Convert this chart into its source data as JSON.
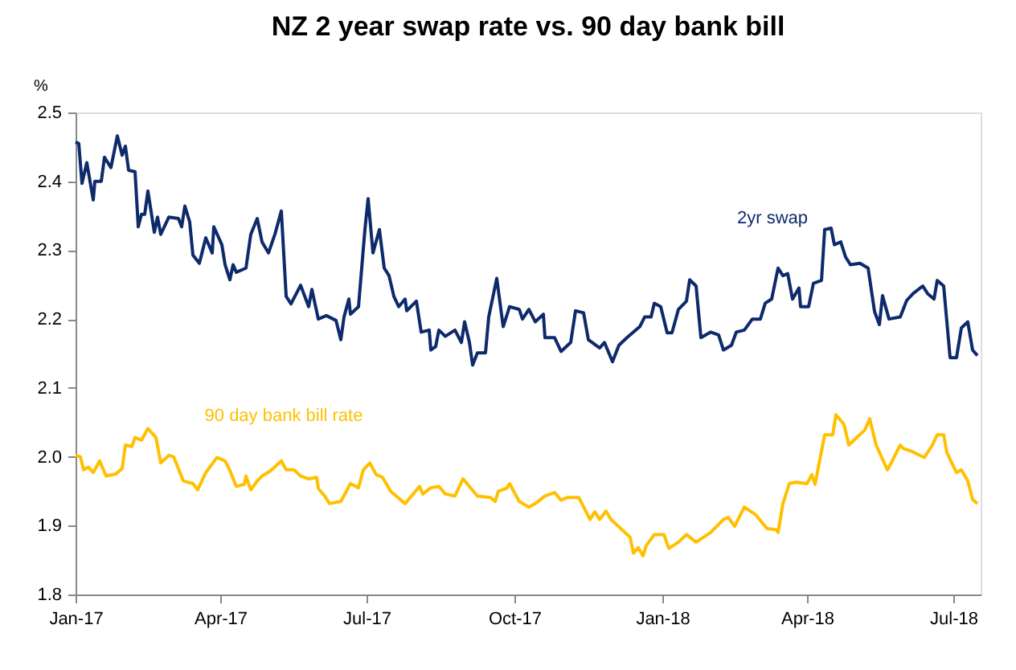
{
  "chart_data": {
    "type": "line",
    "title": "NZ 2 year swap rate vs. 90 day bank bill",
    "ylabel": "%",
    "xlim": [
      "2017-01-01",
      "2018-07-18"
    ],
    "xticks": [
      {
        "value": "2017-01-01",
        "label": "Jan-17"
      },
      {
        "value": "2017-04-01",
        "label": "Apr-17"
      },
      {
        "value": "2017-07-01",
        "label": "Jul-17"
      },
      {
        "value": "2017-10-01",
        "label": "Oct-17"
      },
      {
        "value": "2018-01-01",
        "label": "Jan-18"
      },
      {
        "value": "2018-04-01",
        "label": "Apr-18"
      },
      {
        "value": "2018-07-01",
        "label": "Jul-18"
      }
    ],
    "ylim": [
      1.8,
      2.5
    ],
    "yticks": [
      1.8,
      1.9,
      {
        "value": 2.0,
        "label": "2.0"
      },
      2.1,
      2.2,
      2.3,
      2.4,
      2.5
    ],
    "grid": false,
    "legend": false,
    "marker": "none",
    "line_style": "solid",
    "series": [
      {
        "name": "2yr swap",
        "color": "#0d2a6b",
        "x": [
          "2017-01-01",
          "2017-01-03",
          "2017-01-05",
          "2017-01-08",
          "2017-01-12",
          "2017-01-13",
          "2017-01-17",
          "2017-01-19",
          "2017-01-23",
          "2017-01-27",
          "2017-01-30",
          "2017-02-01",
          "2017-02-03",
          "2017-02-07",
          "2017-02-09",
          "2017-02-11",
          "2017-02-13",
          "2017-02-15",
          "2017-02-19",
          "2017-02-21",
          "2017-02-23",
          "2017-02-28",
          "2017-03-06",
          "2017-03-08",
          "2017-03-10",
          "2017-03-13",
          "2017-03-15",
          "2017-03-19",
          "2017-03-23",
          "2017-03-27",
          "2017-03-28",
          "2017-04-02",
          "2017-04-04",
          "2017-04-07",
          "2017-04-09",
          "2017-04-11",
          "2017-04-17",
          "2017-04-20",
          "2017-04-24",
          "2017-04-27",
          "2017-05-01",
          "2017-05-05",
          "2017-05-09",
          "2017-05-12",
          "2017-05-15",
          "2017-05-21",
          "2017-05-26",
          "2017-05-28",
          "2017-06-01",
          "2017-06-06",
          "2017-06-12",
          "2017-06-15",
          "2017-06-17",
          "2017-06-20",
          "2017-06-21",
          "2017-06-26",
          "2017-06-30",
          "2017-07-02",
          "2017-07-05",
          "2017-07-09",
          "2017-07-12",
          "2017-07-15",
          "2017-07-18",
          "2017-07-21",
          "2017-07-25",
          "2017-07-26",
          "2017-08-01",
          "2017-08-04",
          "2017-08-09",
          "2017-08-10",
          "2017-08-13",
          "2017-08-15",
          "2017-08-19",
          "2017-08-25",
          "2017-08-29",
          "2017-08-31",
          "2017-09-03",
          "2017-09-05",
          "2017-09-08",
          "2017-09-13",
          "2017-09-15",
          "2017-09-20",
          "2017-09-24",
          "2017-09-28",
          "2017-10-04",
          "2017-10-06",
          "2017-10-10",
          "2017-10-14",
          "2017-10-19",
          "2017-10-20",
          "2017-10-26",
          "2017-10-30",
          "2017-11-05",
          "2017-11-08",
          "2017-11-13",
          "2017-11-16",
          "2017-11-23",
          "2017-11-26",
          "2017-12-01",
          "2017-12-05",
          "2017-12-10",
          "2017-12-18",
          "2017-12-21",
          "2017-12-25",
          "2017-12-27",
          "2017-12-31",
          "2018-01-04",
          "2018-01-07",
          "2018-01-11",
          "2018-01-16",
          "2018-01-18",
          "2018-01-22",
          "2018-01-25",
          "2018-01-31",
          "2018-02-05",
          "2018-02-08",
          "2018-02-13",
          "2018-02-16",
          "2018-02-21",
          "2018-02-26",
          "2018-03-03",
          "2018-03-06",
          "2018-03-10",
          "2018-03-14",
          "2018-03-17",
          "2018-03-20",
          "2018-03-23",
          "2018-03-27",
          "2018-03-28",
          "2018-04-02",
          "2018-04-05",
          "2018-04-10",
          "2018-04-12",
          "2018-04-16",
          "2018-04-18",
          "2018-04-22",
          "2018-04-25",
          "2018-04-28",
          "2018-05-04",
          "2018-05-09",
          "2018-05-13",
          "2018-05-16",
          "2018-05-18",
          "2018-05-22",
          "2018-05-29",
          "2018-06-02",
          "2018-06-06",
          "2018-06-12",
          "2018-06-15",
          "2018-06-19",
          "2018-06-21",
          "2018-06-25",
          "2018-06-29",
          "2018-07-03",
          "2018-07-06",
          "2018-07-10",
          "2018-07-13",
          "2018-07-16"
        ],
        "values": [
          2.457,
          2.455,
          2.397,
          2.427,
          2.373,
          2.4,
          2.4,
          2.435,
          2.42,
          2.466,
          2.438,
          2.451,
          2.416,
          2.414,
          2.334,
          2.352,
          2.352,
          2.386,
          2.326,
          2.348,
          2.323,
          2.348,
          2.346,
          2.334,
          2.364,
          2.341,
          2.293,
          2.281,
          2.318,
          2.296,
          2.334,
          2.308,
          2.279,
          2.257,
          2.279,
          2.268,
          2.274,
          2.323,
          2.346,
          2.312,
          2.296,
          2.323,
          2.357,
          2.233,
          2.222,
          2.249,
          2.218,
          2.243,
          2.2,
          2.205,
          2.198,
          2.17,
          2.203,
          2.229,
          2.207,
          2.218,
          2.33,
          2.375,
          2.296,
          2.33,
          2.274,
          2.263,
          2.233,
          2.218,
          2.229,
          2.212,
          2.226,
          2.181,
          2.184,
          2.155,
          2.16,
          2.184,
          2.175,
          2.184,
          2.166,
          2.196,
          2.166,
          2.133,
          2.151,
          2.151,
          2.203,
          2.259,
          2.189,
          2.218,
          2.214,
          2.2,
          2.214,
          2.196,
          2.207,
          2.173,
          2.173,
          2.153,
          2.166,
          2.212,
          2.209,
          2.17,
          2.158,
          2.166,
          2.138,
          2.162,
          2.173,
          2.189,
          2.203,
          2.203,
          2.223,
          2.218,
          2.18,
          2.18,
          2.214,
          2.226,
          2.257,
          2.248,
          2.173,
          2.181,
          2.177,
          2.155,
          2.162,
          2.181,
          2.184,
          2.2,
          2.2,
          2.223,
          2.229,
          2.274,
          2.263,
          2.266,
          2.229,
          2.245,
          2.218,
          2.218,
          2.252,
          2.256,
          2.33,
          2.332,
          2.308,
          2.312,
          2.29,
          2.279,
          2.281,
          2.274,
          2.211,
          2.192,
          2.234,
          2.2,
          2.203,
          2.227,
          2.237,
          2.248,
          2.237,
          2.229,
          2.256,
          2.248,
          2.144,
          2.144,
          2.187,
          2.196,
          2.155,
          2.147
        ]
      },
      {
        "name": "90 day bank bill rate",
        "color": "#ffc000",
        "x": [
          "2017-01-01",
          "2017-01-04",
          "2017-01-06",
          "2017-01-09",
          "2017-01-12",
          "2017-01-16",
          "2017-01-20",
          "2017-01-26",
          "2017-01-30",
          "2017-02-01",
          "2017-02-05",
          "2017-02-07",
          "2017-02-11",
          "2017-02-15",
          "2017-02-20",
          "2017-02-23",
          "2017-02-28",
          "2017-03-03",
          "2017-03-09",
          "2017-03-15",
          "2017-03-18",
          "2017-03-23",
          "2017-03-30",
          "2017-04-04",
          "2017-04-07",
          "2017-04-11",
          "2017-04-16",
          "2017-04-17",
          "2017-04-20",
          "2017-04-24",
          "2017-04-27",
          "2017-05-02",
          "2017-05-09",
          "2017-05-12",
          "2017-05-17",
          "2017-05-21",
          "2017-05-26",
          "2017-05-31",
          "2017-06-01",
          "2017-06-05",
          "2017-06-08",
          "2017-06-15",
          "2017-06-21",
          "2017-06-26",
          "2017-06-29",
          "2017-07-03",
          "2017-07-07",
          "2017-07-11",
          "2017-07-16",
          "2017-07-25",
          "2017-07-30",
          "2017-08-03",
          "2017-08-05",
          "2017-08-10",
          "2017-08-15",
          "2017-08-19",
          "2017-08-25",
          "2017-08-30",
          "2017-09-04",
          "2017-09-08",
          "2017-09-16",
          "2017-09-19",
          "2017-09-21",
          "2017-09-26",
          "2017-09-28",
          "2017-10-04",
          "2017-10-10",
          "2017-10-14",
          "2017-10-20",
          "2017-10-26",
          "2017-10-30",
          "2017-11-03",
          "2017-11-10",
          "2017-11-17",
          "2017-11-20",
          "2017-11-23",
          "2017-11-27",
          "2017-11-30",
          "2017-12-07",
          "2017-12-12",
          "2017-12-14",
          "2017-12-17",
          "2017-12-20",
          "2017-12-22",
          "2017-12-27",
          "2018-01-02",
          "2018-01-05",
          "2018-01-11",
          "2018-01-16",
          "2018-01-22",
          "2018-01-31",
          "2018-02-08",
          "2018-02-11",
          "2018-02-15",
          "2018-02-21",
          "2018-02-28",
          "2018-03-07",
          "2018-03-13",
          "2018-03-14",
          "2018-03-17",
          "2018-03-21",
          "2018-03-25",
          "2018-04-01",
          "2018-04-04",
          "2018-04-06",
          "2018-04-07",
          "2018-04-12",
          "2018-04-17",
          "2018-04-19",
          "2018-04-24",
          "2018-04-27",
          "2018-05-02",
          "2018-05-07",
          "2018-05-10",
          "2018-05-14",
          "2018-05-21",
          "2018-05-24",
          "2018-05-29",
          "2018-05-31",
          "2018-06-05",
          "2018-06-13",
          "2018-06-18",
          "2018-06-21",
          "2018-06-25",
          "2018-06-27",
          "2018-07-03",
          "2018-07-06",
          "2018-07-10",
          "2018-07-13",
          "2018-07-16"
        ],
        "values": [
          2.002,
          2.0,
          1.981,
          1.985,
          1.977,
          1.994,
          1.972,
          1.975,
          1.983,
          2.017,
          2.015,
          2.028,
          2.024,
          2.041,
          2.028,
          1.991,
          2.002,
          2.0,
          1.965,
          1.961,
          1.952,
          1.977,
          1.999,
          1.994,
          1.98,
          1.957,
          1.96,
          1.972,
          1.952,
          1.965,
          1.972,
          1.979,
          1.994,
          1.981,
          1.981,
          1.972,
          1.968,
          1.97,
          1.954,
          1.943,
          1.932,
          1.935,
          1.961,
          1.955,
          1.981,
          1.991,
          1.974,
          1.97,
          1.95,
          1.932,
          1.946,
          1.957,
          1.946,
          1.955,
          1.957,
          1.946,
          1.943,
          1.968,
          1.954,
          1.943,
          1.941,
          1.935,
          1.95,
          1.954,
          1.961,
          1.935,
          1.927,
          1.932,
          1.943,
          1.948,
          1.937,
          1.941,
          1.941,
          1.909,
          1.92,
          1.909,
          1.921,
          1.909,
          1.894,
          1.883,
          1.86,
          1.868,
          1.856,
          1.871,
          1.887,
          1.887,
          1.867,
          1.876,
          1.887,
          1.876,
          1.89,
          1.909,
          1.912,
          1.899,
          1.927,
          1.916,
          1.896,
          1.894,
          1.89,
          1.932,
          1.961,
          1.963,
          1.961,
          1.974,
          1.96,
          1.972,
          2.032,
          2.032,
          2.061,
          2.047,
          2.017,
          2.028,
          2.039,
          2.055,
          2.017,
          1.981,
          1.994,
          2.017,
          2.012,
          2.008,
          1.999,
          2.017,
          2.032,
          2.032,
          2.006,
          1.977,
          1.981,
          1.965,
          1.938,
          1.932
        ]
      }
    ]
  }
}
